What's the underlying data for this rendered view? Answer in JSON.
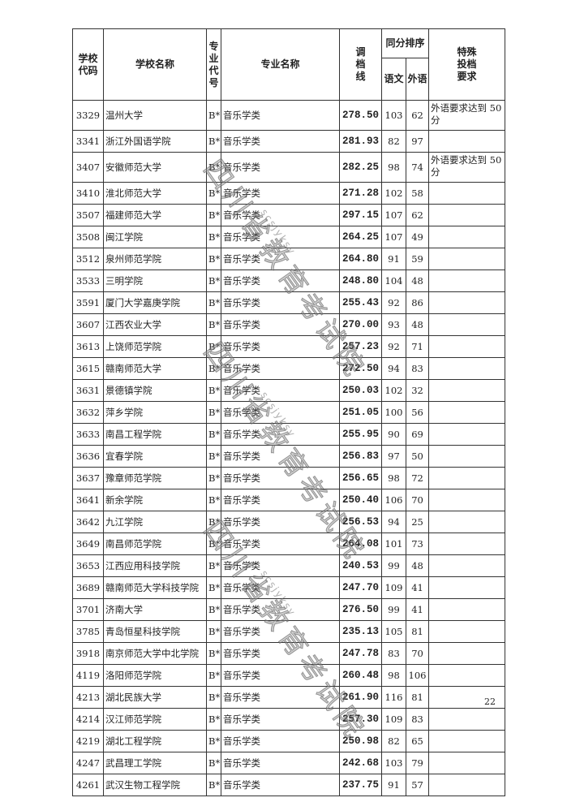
{
  "header": {
    "school_code": "学校代码",
    "school_name": "学校名称",
    "major_code": "专业代号",
    "major_name": "专业名称",
    "cutoff": "调档线",
    "tie_rank": "同分排序",
    "chinese": "语文",
    "foreign": "外语",
    "special": "特殊投档要求"
  },
  "rows": [
    {
      "code": "3329",
      "school": "温州大学",
      "mcode": "B*",
      "major": "音乐学类",
      "score": "278.50",
      "cn": "103",
      "fl": "62",
      "note": "外语要求达到 50 分"
    },
    {
      "code": "3341",
      "school": "浙江外国语学院",
      "mcode": "B*",
      "major": "音乐学类",
      "score": "281.93",
      "cn": "82",
      "fl": "97",
      "note": ""
    },
    {
      "code": "3407",
      "school": "安徽师范大学",
      "mcode": "B*",
      "major": "音乐学类",
      "score": "282.25",
      "cn": "98",
      "fl": "74",
      "note": "外语要求达到 50 分"
    },
    {
      "code": "3410",
      "school": "淮北师范大学",
      "mcode": "B*",
      "major": "音乐学类",
      "score": "271.28",
      "cn": "102",
      "fl": "58",
      "note": ""
    },
    {
      "code": "3507",
      "school": "福建师范大学",
      "mcode": "B*",
      "major": "音乐学类",
      "score": "297.15",
      "cn": "107",
      "fl": "62",
      "note": ""
    },
    {
      "code": "3508",
      "school": "闽江学院",
      "mcode": "B*",
      "major": "音乐学类",
      "score": "264.25",
      "cn": "107",
      "fl": "49",
      "note": ""
    },
    {
      "code": "3512",
      "school": "泉州师范学院",
      "mcode": "B*",
      "major": "音乐学类",
      "score": "264.80",
      "cn": "91",
      "fl": "59",
      "note": ""
    },
    {
      "code": "3533",
      "school": "三明学院",
      "mcode": "B*",
      "major": "音乐学类",
      "score": "248.80",
      "cn": "104",
      "fl": "48",
      "note": ""
    },
    {
      "code": "3591",
      "school": "厦门大学嘉庚学院",
      "mcode": "B*",
      "major": "音乐学类",
      "score": "255.43",
      "cn": "92",
      "fl": "86",
      "note": ""
    },
    {
      "code": "3607",
      "school": "江西农业大学",
      "mcode": "B*",
      "major": "音乐学类",
      "score": "270.00",
      "cn": "93",
      "fl": "48",
      "note": ""
    },
    {
      "code": "3613",
      "school": "上饶师范学院",
      "mcode": "B*",
      "major": "音乐学类",
      "score": "257.23",
      "cn": "92",
      "fl": "71",
      "note": ""
    },
    {
      "code": "3615",
      "school": "赣南师范大学",
      "mcode": "B*",
      "major": "音乐学类",
      "score": "272.50",
      "cn": "94",
      "fl": "83",
      "note": ""
    },
    {
      "code": "3631",
      "school": "景德镇学院",
      "mcode": "B*",
      "major": "音乐学类",
      "score": "250.03",
      "cn": "102",
      "fl": "32",
      "note": ""
    },
    {
      "code": "3632",
      "school": "萍乡学院",
      "mcode": "B*",
      "major": "音乐学类",
      "score": "251.05",
      "cn": "100",
      "fl": "56",
      "note": ""
    },
    {
      "code": "3633",
      "school": "南昌工程学院",
      "mcode": "B*",
      "major": "音乐学类",
      "score": "255.95",
      "cn": "90",
      "fl": "69",
      "note": ""
    },
    {
      "code": "3636",
      "school": "宜春学院",
      "mcode": "B*",
      "major": "音乐学类",
      "score": "256.83",
      "cn": "97",
      "fl": "50",
      "note": ""
    },
    {
      "code": "3637",
      "school": "豫章师范学院",
      "mcode": "B*",
      "major": "音乐学类",
      "score": "256.65",
      "cn": "98",
      "fl": "72",
      "note": ""
    },
    {
      "code": "3641",
      "school": "新余学院",
      "mcode": "B*",
      "major": "音乐学类",
      "score": "250.40",
      "cn": "106",
      "fl": "70",
      "note": ""
    },
    {
      "code": "3642",
      "school": "九江学院",
      "mcode": "B*",
      "major": "音乐学类",
      "score": "256.53",
      "cn": "94",
      "fl": "25",
      "note": ""
    },
    {
      "code": "3649",
      "school": "南昌师范学院",
      "mcode": "B*",
      "major": "音乐学类",
      "score": "264.08",
      "cn": "101",
      "fl": "73",
      "note": ""
    },
    {
      "code": "3653",
      "school": "江西应用科技学院",
      "mcode": "B*",
      "major": "音乐学类",
      "score": "240.53",
      "cn": "99",
      "fl": "48",
      "note": ""
    },
    {
      "code": "3689",
      "school": "赣南师范大学科技学院",
      "mcode": "B*",
      "major": "音乐学类",
      "score": "247.70",
      "cn": "109",
      "fl": "41",
      "note": ""
    },
    {
      "code": "3701",
      "school": "济南大学",
      "mcode": "B*",
      "major": "音乐学类",
      "score": "276.50",
      "cn": "99",
      "fl": "41",
      "note": ""
    },
    {
      "code": "3785",
      "school": "青岛恒星科技学院",
      "mcode": "B*",
      "major": "音乐学类",
      "score": "235.13",
      "cn": "105",
      "fl": "81",
      "note": ""
    },
    {
      "code": "3918",
      "school": "南京师范大学中北学院",
      "mcode": "B*",
      "major": "音乐学类",
      "score": "247.78",
      "cn": "83",
      "fl": "70",
      "note": ""
    },
    {
      "code": "4119",
      "school": "洛阳师范学院",
      "mcode": "B*",
      "major": "音乐学类",
      "score": "260.48",
      "cn": "98",
      "fl": "106",
      "note": ""
    },
    {
      "code": "4213",
      "school": "湖北民族大学",
      "mcode": "B*",
      "major": "音乐学类",
      "score": "261.90",
      "cn": "116",
      "fl": "81",
      "note": ""
    },
    {
      "code": "4214",
      "school": "汉江师范学院",
      "mcode": "B*",
      "major": "音乐学类",
      "score": "257.30",
      "cn": "109",
      "fl": "83",
      "note": ""
    },
    {
      "code": "4219",
      "school": "湖北工程学院",
      "mcode": "B*",
      "major": "音乐学类",
      "score": "250.98",
      "cn": "82",
      "fl": "65",
      "note": ""
    },
    {
      "code": "4247",
      "school": "武昌理工学院",
      "mcode": "B*",
      "major": "音乐学类",
      "score": "242.68",
      "cn": "103",
      "fl": "79",
      "note": ""
    },
    {
      "code": "4261",
      "school": "武汉生物工程学院",
      "mcode": "B*",
      "major": "音乐学类",
      "score": "237.75",
      "cn": "91",
      "fl": "57",
      "note": ""
    }
  ],
  "page_number": "22",
  "watermark": {
    "org": "四川省教育考试院",
    "id": "scsjyksy"
  }
}
